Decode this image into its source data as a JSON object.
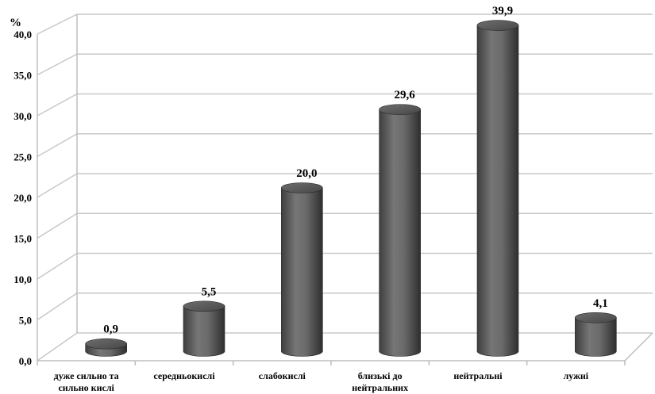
{
  "chart_data": {
    "type": "bar",
    "unit_label": "%",
    "categories": [
      [
        "дуже сильно та",
        "сильно кислі"
      ],
      [
        "середньокислі"
      ],
      [
        "слабокислі"
      ],
      [
        "близькі до",
        "нейтральних"
      ],
      [
        "нейтральні"
      ],
      [
        "лужні"
      ]
    ],
    "values": [
      0.9,
      5.5,
      20.0,
      29.6,
      39.9,
      4.1
    ],
    "value_labels": [
      "0,9",
      "5,5",
      "20,0",
      "29,6",
      "39,9",
      "4,1"
    ],
    "yticks": [
      "0,0",
      "5,0",
      "10,0",
      "15,0",
      "20,0",
      "25,0",
      "30,0",
      "35,0",
      "40,0"
    ],
    "ylim": [
      0,
      40
    ],
    "grid": true,
    "bar_color": "#5f5f5f",
    "style": "3d-cylinder"
  }
}
